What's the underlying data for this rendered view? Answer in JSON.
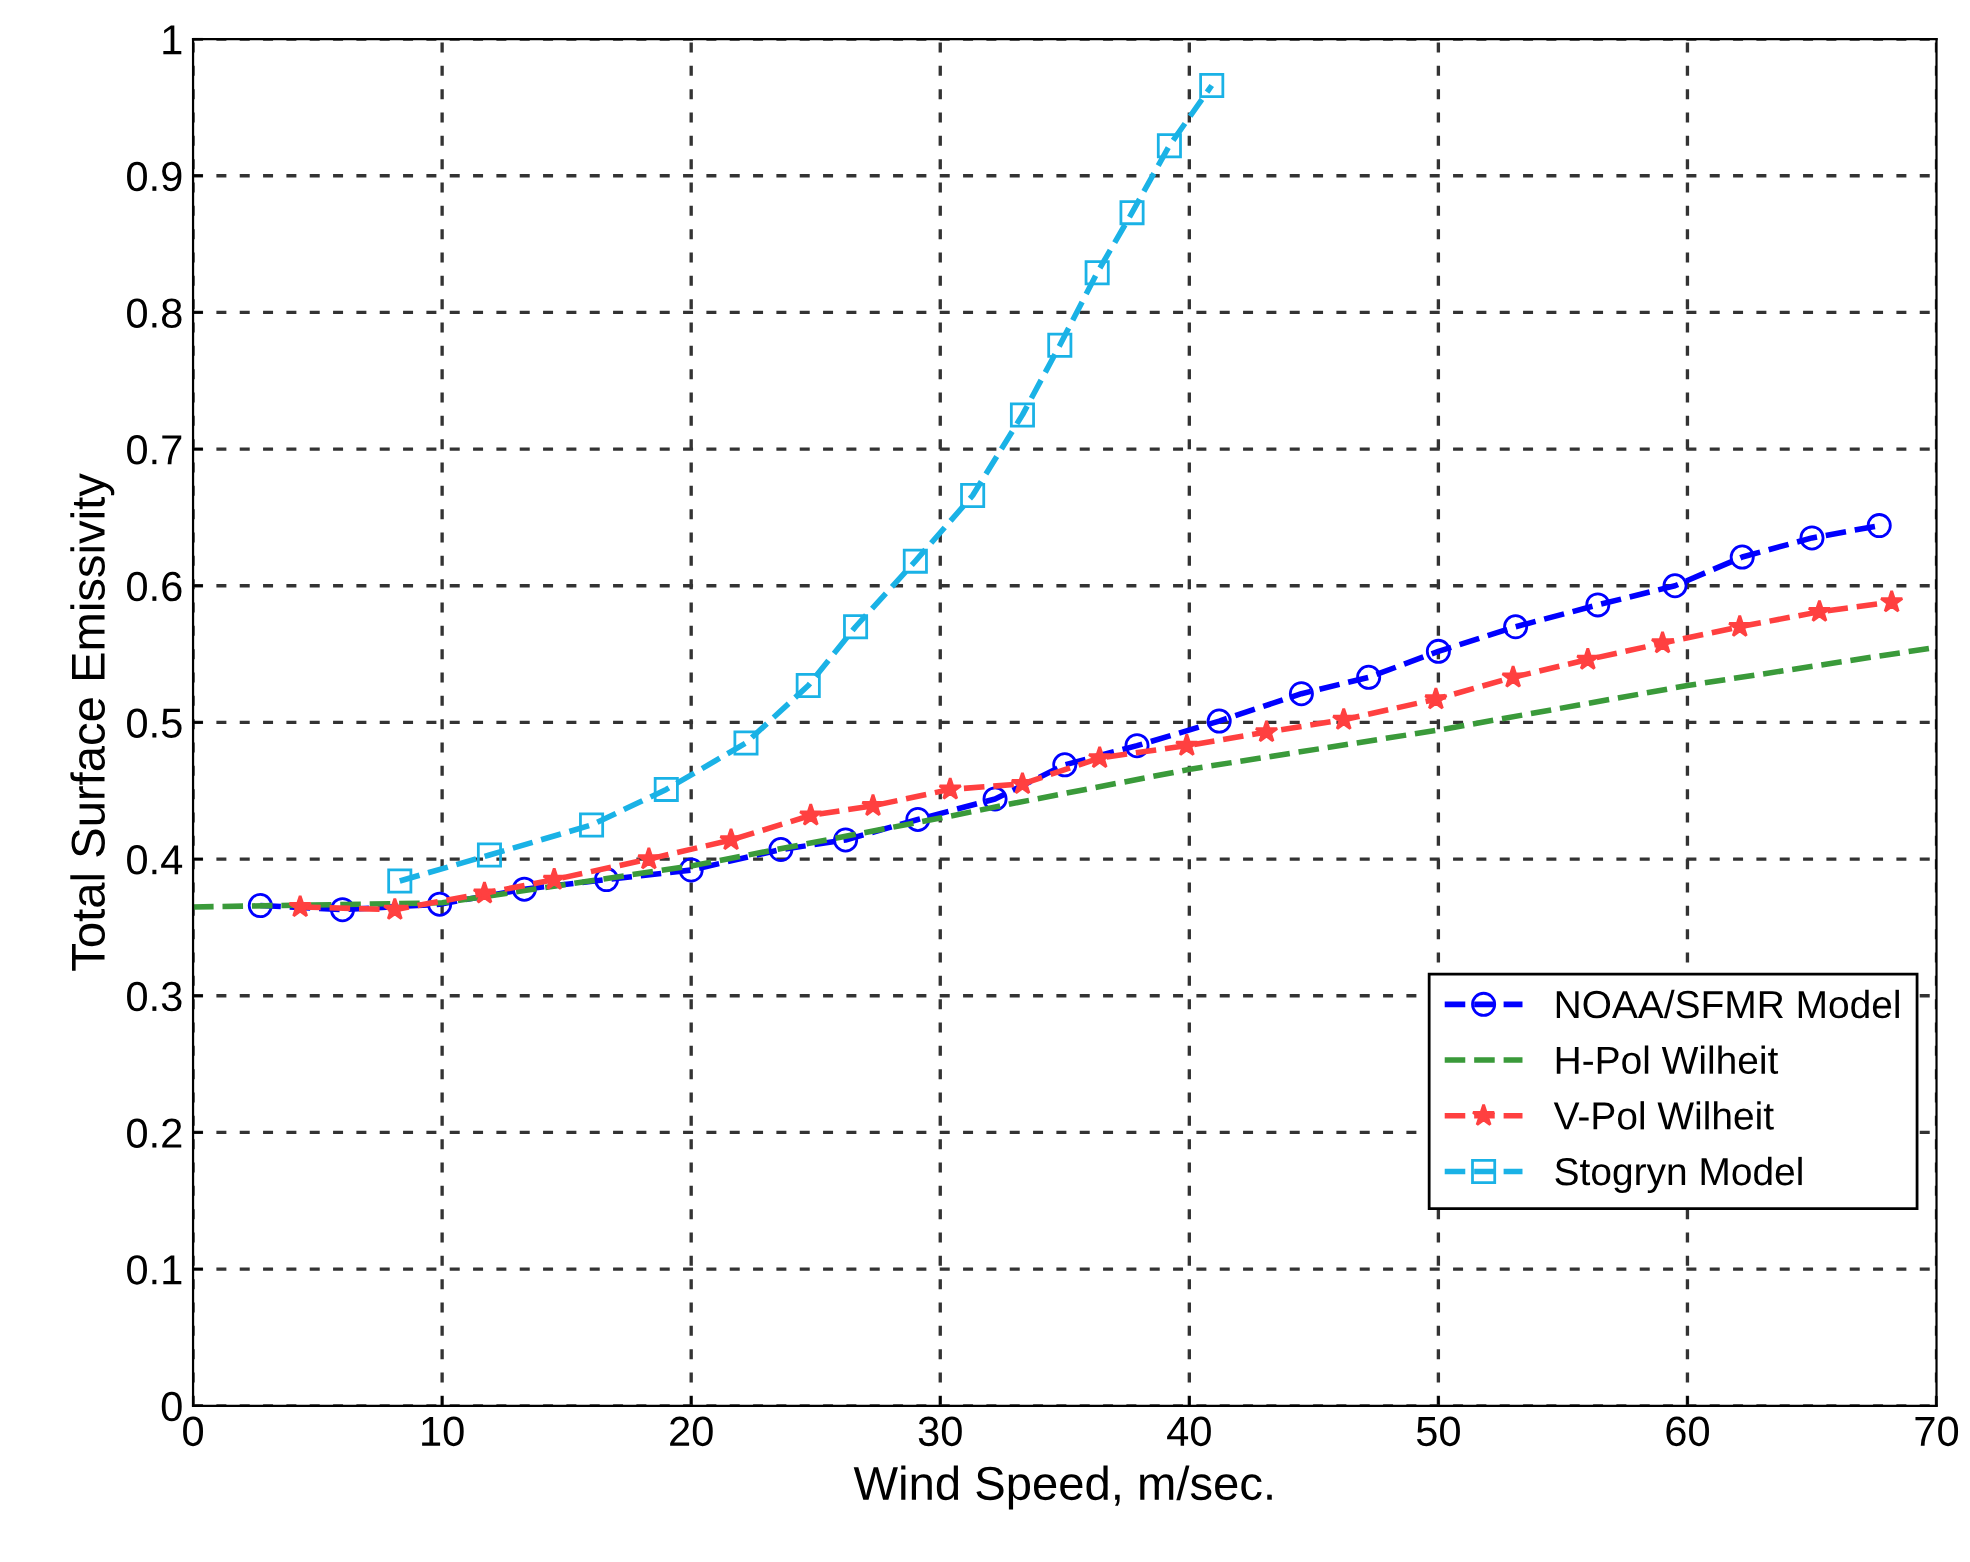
{
  "chart_data": {
    "type": "line",
    "xlabel": "Wind Speed, m/sec.",
    "ylabel": "Total Surface Emissivity",
    "xlim": [
      0,
      70
    ],
    "ylim": [
      0,
      1
    ],
    "xticks": [
      0,
      10,
      20,
      30,
      40,
      50,
      60,
      70
    ],
    "yticks": [
      0,
      0.1,
      0.2,
      0.3,
      0.4,
      0.5,
      0.6,
      0.7,
      0.8,
      0.9,
      1
    ],
    "grid": true,
    "legend": "bottom right",
    "series": [
      {
        "name": "NOAA/SFMR Model",
        "color": "#0000ff",
        "marker": "circle",
        "line_style": "dashed",
        "x": [
          2.7,
          6.0,
          9.9,
          13.3,
          16.6,
          20.0,
          23.6,
          26.2,
          29.1,
          32.2,
          35.0,
          37.9,
          41.2,
          44.5,
          47.2,
          50.0,
          53.1,
          56.4,
          59.5,
          62.2,
          65.0,
          67.7
        ],
        "values": [
          0.366,
          0.363,
          0.367,
          0.378,
          0.385,
          0.392,
          0.407,
          0.414,
          0.429,
          0.444,
          0.469,
          0.483,
          0.501,
          0.521,
          0.533,
          0.552,
          0.57,
          0.586,
          0.6,
          0.621,
          0.635,
          0.644
        ]
      },
      {
        "name": "H-Pol Wilheit",
        "color": "#3a9a3a",
        "marker": "none",
        "line_style": "dashed",
        "x": [
          0,
          10,
          20,
          30,
          33.0,
          40.1,
          50.2,
          60.0,
          70
        ],
        "values": [
          0.365,
          0.368,
          0.395,
          0.43,
          0.441,
          0.466,
          0.495,
          0.527,
          0.555
        ]
      },
      {
        "name": "V-Pol Wilheit",
        "color": "#ff4040",
        "marker": "star",
        "line_style": "dashed",
        "x": [
          4.3,
          8.1,
          11.7,
          14.5,
          18.3,
          21.6,
          24.8,
          27.3,
          30.4,
          33.3,
          36.4,
          39.9,
          43.1,
          46.2,
          49.9,
          53.0,
          56.0,
          59.0,
          62.1,
          65.3,
          68.2
        ],
        "values": [
          0.365,
          0.363,
          0.375,
          0.385,
          0.4,
          0.414,
          0.432,
          0.439,
          0.451,
          0.455,
          0.474,
          0.483,
          0.493,
          0.502,
          0.517,
          0.533,
          0.546,
          0.558,
          0.57,
          0.581,
          0.588
        ]
      },
      {
        "name": "Stogryn Model",
        "color": "#1ab2e6",
        "marker": "square",
        "line_style": "dashed",
        "x": [
          8.3,
          11.9,
          16.0,
          19.0,
          22.2,
          24.7,
          26.6,
          29.0,
          31.3,
          33.3,
          34.8,
          36.3,
          37.7,
          39.2,
          40.9
        ],
        "values": [
          0.384,
          0.403,
          0.425,
          0.451,
          0.485,
          0.527,
          0.57,
          0.618,
          0.666,
          0.725,
          0.776,
          0.829,
          0.873,
          0.922,
          0.966
        ]
      }
    ]
  }
}
